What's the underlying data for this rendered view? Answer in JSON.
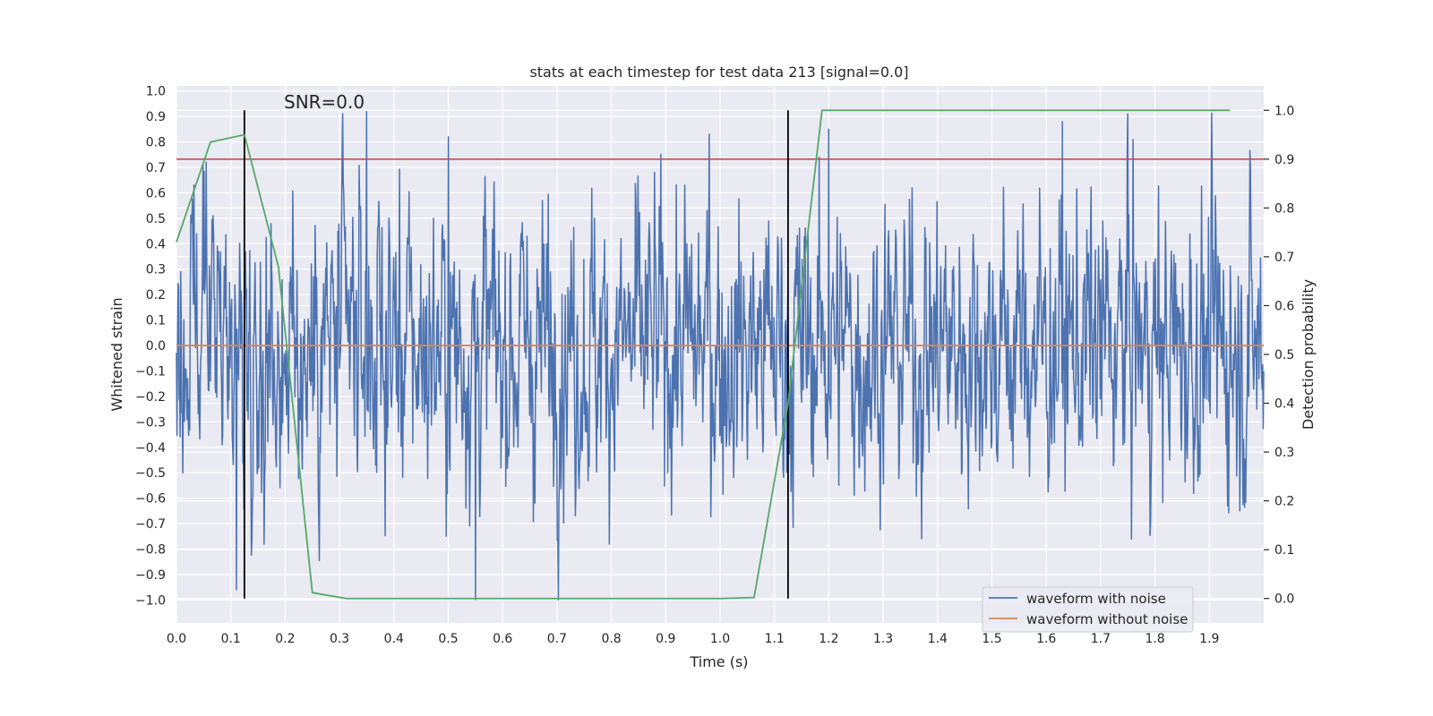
{
  "chart_data": {
    "type": "line",
    "title": "stats at each timestep for test data 213 [signal=0.0]",
    "xlabel": "Time (s)",
    "ylabel": "Whitened strain",
    "y2label": "Detection probability",
    "annotation": "SNR=0.0",
    "xlim": [
      0.0,
      2.0
    ],
    "ylim": [
      -1.09,
      1.02
    ],
    "y2lim": [
      -0.05,
      1.05
    ],
    "x_ticks": [
      0.0,
      0.1,
      0.2,
      0.3,
      0.4,
      0.5,
      0.6,
      0.7,
      0.8,
      0.9,
      1.0,
      1.1,
      1.2,
      1.3,
      1.4,
      1.5,
      1.6,
      1.7,
      1.8,
      1.9
    ],
    "x_tick_labels": [
      "0.0",
      "0.1",
      "0.2",
      "0.3",
      "0.4",
      "0.5",
      "0.6",
      "0.7",
      "0.8",
      "0.9",
      "1.0",
      "1.1",
      "1.2",
      "1.3",
      "1.4",
      "1.5",
      "1.6",
      "1.7",
      "1.8",
      "1.9"
    ],
    "y_ticks": [
      1.0,
      0.9,
      0.8,
      0.7,
      0.6,
      0.5,
      0.4,
      0.3,
      0.2,
      0.1,
      0.0,
      -0.1,
      -0.2,
      -0.3,
      -0.4,
      -0.5,
      -0.6,
      -0.7,
      -0.8,
      -0.9,
      -1.0
    ],
    "y_tick_labels": [
      "1.0",
      "0.9",
      "0.8",
      "0.7",
      "0.6",
      "0.5",
      "0.4",
      "0.3",
      "0.2",
      "0.1",
      "0.0",
      "−0.1",
      "−0.2",
      "−0.3",
      "−0.4",
      "−0.5",
      "−0.6",
      "−0.7",
      "−0.8",
      "−0.9",
      "−1.0"
    ],
    "y2_ticks": [
      1.0,
      0.9,
      0.8,
      0.7,
      0.6,
      0.5,
      0.4,
      0.3,
      0.2,
      0.1,
      0.0
    ],
    "y2_tick_labels": [
      "1.0",
      "0.9",
      "0.8",
      "0.7",
      "0.6",
      "0.5",
      "0.4",
      "0.3",
      "0.2",
      "0.1",
      "0.0"
    ],
    "noise_series": {
      "name": "waveform with noise",
      "color": "#4c72b0",
      "n_samples": 2048,
      "approx_std": 0.28,
      "range": [
        -1.0,
        0.92
      ],
      "notable_peaks": [
        {
          "x": 0.055,
          "y": 0.72
        },
        {
          "x": 0.11,
          "y": -0.96
        },
        {
          "x": 0.35,
          "y": 0.92
        },
        {
          "x": 0.5,
          "y": 0.82
        },
        {
          "x": 0.55,
          "y": -1.0
        },
        {
          "x": 0.98,
          "y": 0.83
        },
        {
          "x": 1.2,
          "y": 0.85
        },
        {
          "x": 1.63,
          "y": 0.88
        },
        {
          "x": 1.75,
          "y": 0.91
        },
        {
          "x": 1.76,
          "y": 0.81
        }
      ]
    },
    "clean_series": {
      "name": "waveform without noise",
      "color": "#dd8452",
      "value": 0.0
    },
    "probability_series": {
      "name": "detection probability",
      "color": "#55a868",
      "x": [
        0.0,
        0.0625,
        0.125,
        0.1875,
        0.25,
        0.3125,
        1.0,
        1.0625,
        1.125,
        1.1875,
        1.9375
      ],
      "y": [
        0.73,
        0.935,
        0.95,
        0.68,
        0.012,
        0.0,
        0.0,
        0.002,
        0.4,
        1.0,
        1.0
      ]
    },
    "threshold_line": {
      "axis": "y2",
      "value": 0.9,
      "color": "#c44e52"
    },
    "vertical_markers": {
      "x": [
        0.125,
        1.125
      ],
      "y2_range": [
        0.0,
        1.0
      ],
      "color": "#000000"
    },
    "legend": {
      "position": "lower-right",
      "entries": [
        {
          "label": "waveform with noise",
          "color": "#4c72b0"
        },
        {
          "label": "waveform without noise",
          "color": "#dd8452"
        }
      ]
    }
  }
}
